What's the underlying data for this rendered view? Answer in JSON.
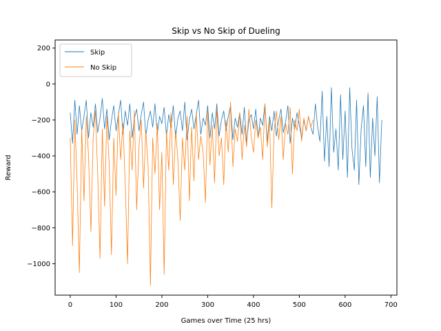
{
  "chart_data": {
    "type": "line",
    "title": "Skip vs No Skip of Dueling",
    "xlabel": "Games over Time (25 hrs)",
    "ylabel": "Reward",
    "xlim": [
      -33,
      713
    ],
    "ylim": [
      -1175,
      245
    ],
    "xticks": [
      0,
      100,
      200,
      300,
      400,
      500,
      600,
      700
    ],
    "yticks": [
      -1000,
      -800,
      -600,
      -400,
      -200,
      0,
      200
    ],
    "legend_position": "upper left",
    "grid": false,
    "series": [
      {
        "name": "Skip",
        "color": "#1f77b4",
        "x": [
          0,
          5,
          10,
          15,
          20,
          25,
          30,
          35,
          40,
          45,
          50,
          55,
          60,
          65,
          70,
          75,
          80,
          85,
          90,
          95,
          100,
          105,
          110,
          115,
          120,
          125,
          130,
          135,
          140,
          145,
          150,
          155,
          160,
          165,
          170,
          175,
          180,
          185,
          190,
          195,
          200,
          205,
          210,
          215,
          220,
          225,
          230,
          235,
          240,
          245,
          250,
          255,
          260,
          265,
          270,
          275,
          280,
          285,
          290,
          295,
          300,
          305,
          310,
          315,
          320,
          325,
          330,
          335,
          340,
          345,
          350,
          355,
          360,
          365,
          370,
          375,
          380,
          385,
          390,
          395,
          400,
          405,
          410,
          415,
          420,
          425,
          430,
          435,
          440,
          445,
          450,
          455,
          460,
          465,
          470,
          475,
          480,
          485,
          490,
          495,
          500,
          505,
          510,
          515,
          520,
          525,
          530,
          535,
          540,
          545,
          550,
          555,
          560,
          565,
          570,
          575,
          580,
          585,
          590,
          595,
          600,
          605,
          610,
          615,
          620,
          625,
          630,
          635,
          640,
          645,
          650,
          655,
          660,
          665,
          670,
          675,
          680
        ],
        "y": [
          -160,
          -330,
          -90,
          -280,
          -120,
          -260,
          -180,
          -90,
          -300,
          -160,
          -240,
          -110,
          -270,
          -190,
          -80,
          -250,
          -140,
          -310,
          -200,
          -120,
          -260,
          -170,
          -90,
          -280,
          -150,
          -230,
          -110,
          -300,
          -190,
          -140,
          -260,
          -170,
          -100,
          -290,
          -200,
          -150,
          -240,
          -110,
          -280,
          -180,
          -220,
          -130,
          -290,
          -170,
          -240,
          -120,
          -300,
          -190,
          -150,
          -260,
          -100,
          -310,
          -200,
          -140,
          -250,
          -170,
          -90,
          -280,
          -190,
          -230,
          -120,
          -300,
          -160,
          -250,
          -110,
          -290,
          -200,
          -150,
          -260,
          -180,
          -120,
          -310,
          -190,
          -240,
          -160,
          -280,
          -130,
          -330,
          -200,
          -170,
          -250,
          -140,
          -300,
          -190,
          -230,
          -110,
          -320,
          -180,
          -260,
          -150,
          -290,
          -200,
          -140,
          -270,
          -210,
          -120,
          -330,
          -190,
          -250,
          -160,
          -230,
          -300,
          -200,
          -260,
          -180,
          -240,
          -280,
          -110,
          -240,
          -320,
          -40,
          -430,
          -180,
          -460,
          -20,
          -380,
          -250,
          -480,
          -60,
          -420,
          -150,
          -520,
          -20,
          -360,
          -480,
          -90,
          -560,
          -250,
          -120,
          -460,
          -50,
          -520,
          -190,
          -400,
          -70,
          -550,
          -200
        ]
      },
      {
        "name": "No Skip",
        "color": "#ff7f0e",
        "x": [
          0,
          5,
          10,
          15,
          20,
          25,
          30,
          35,
          40,
          45,
          50,
          55,
          60,
          65,
          70,
          75,
          80,
          85,
          90,
          95,
          100,
          105,
          110,
          115,
          120,
          125,
          130,
          135,
          140,
          145,
          150,
          155,
          160,
          165,
          170,
          175,
          180,
          185,
          190,
          195,
          200,
          205,
          210,
          215,
          220,
          225,
          230,
          235,
          240,
          245,
          250,
          255,
          260,
          265,
          270,
          275,
          280,
          285,
          290,
          295,
          300,
          305,
          310,
          315,
          320,
          325,
          330,
          335,
          340,
          345,
          350,
          355,
          360,
          365,
          370,
          375,
          380,
          385,
          390,
          395,
          400,
          405,
          410,
          415,
          420,
          425,
          430,
          435,
          440,
          445,
          450,
          455,
          460,
          465,
          470,
          475,
          480,
          485,
          490,
          495,
          500,
          505,
          510,
          515,
          520,
          525,
          530
        ],
        "y": [
          -300,
          -900,
          -200,
          -550,
          -1050,
          -250,
          -650,
          -180,
          -400,
          -820,
          -300,
          -150,
          -500,
          -970,
          -250,
          -680,
          -180,
          -450,
          -950,
          -300,
          -620,
          -160,
          -420,
          -220,
          -550,
          -1000,
          -260,
          -480,
          -150,
          -700,
          -350,
          -200,
          -580,
          -260,
          -460,
          -1120,
          -300,
          -500,
          -220,
          -700,
          -380,
          -1060,
          -260,
          -480,
          -160,
          -560,
          -260,
          -420,
          -760,
          -300,
          -480,
          -180,
          -650,
          -240,
          -540,
          -160,
          -420,
          -290,
          -380,
          -660,
          -150,
          -450,
          -230,
          -550,
          -140,
          -400,
          -300,
          -560,
          -200,
          -380,
          -100,
          -460,
          -250,
          -320,
          -160,
          -420,
          -230,
          -350,
          -140,
          -290,
          -380,
          -200,
          -300,
          -240,
          -420,
          -110,
          -350,
          -200,
          -690,
          -260,
          -150,
          -310,
          -180,
          -420,
          -220,
          -280,
          -130,
          -500,
          -200,
          -260,
          -140,
          -320,
          -190,
          -260,
          -180,
          -240,
          -200
        ]
      }
    ]
  }
}
